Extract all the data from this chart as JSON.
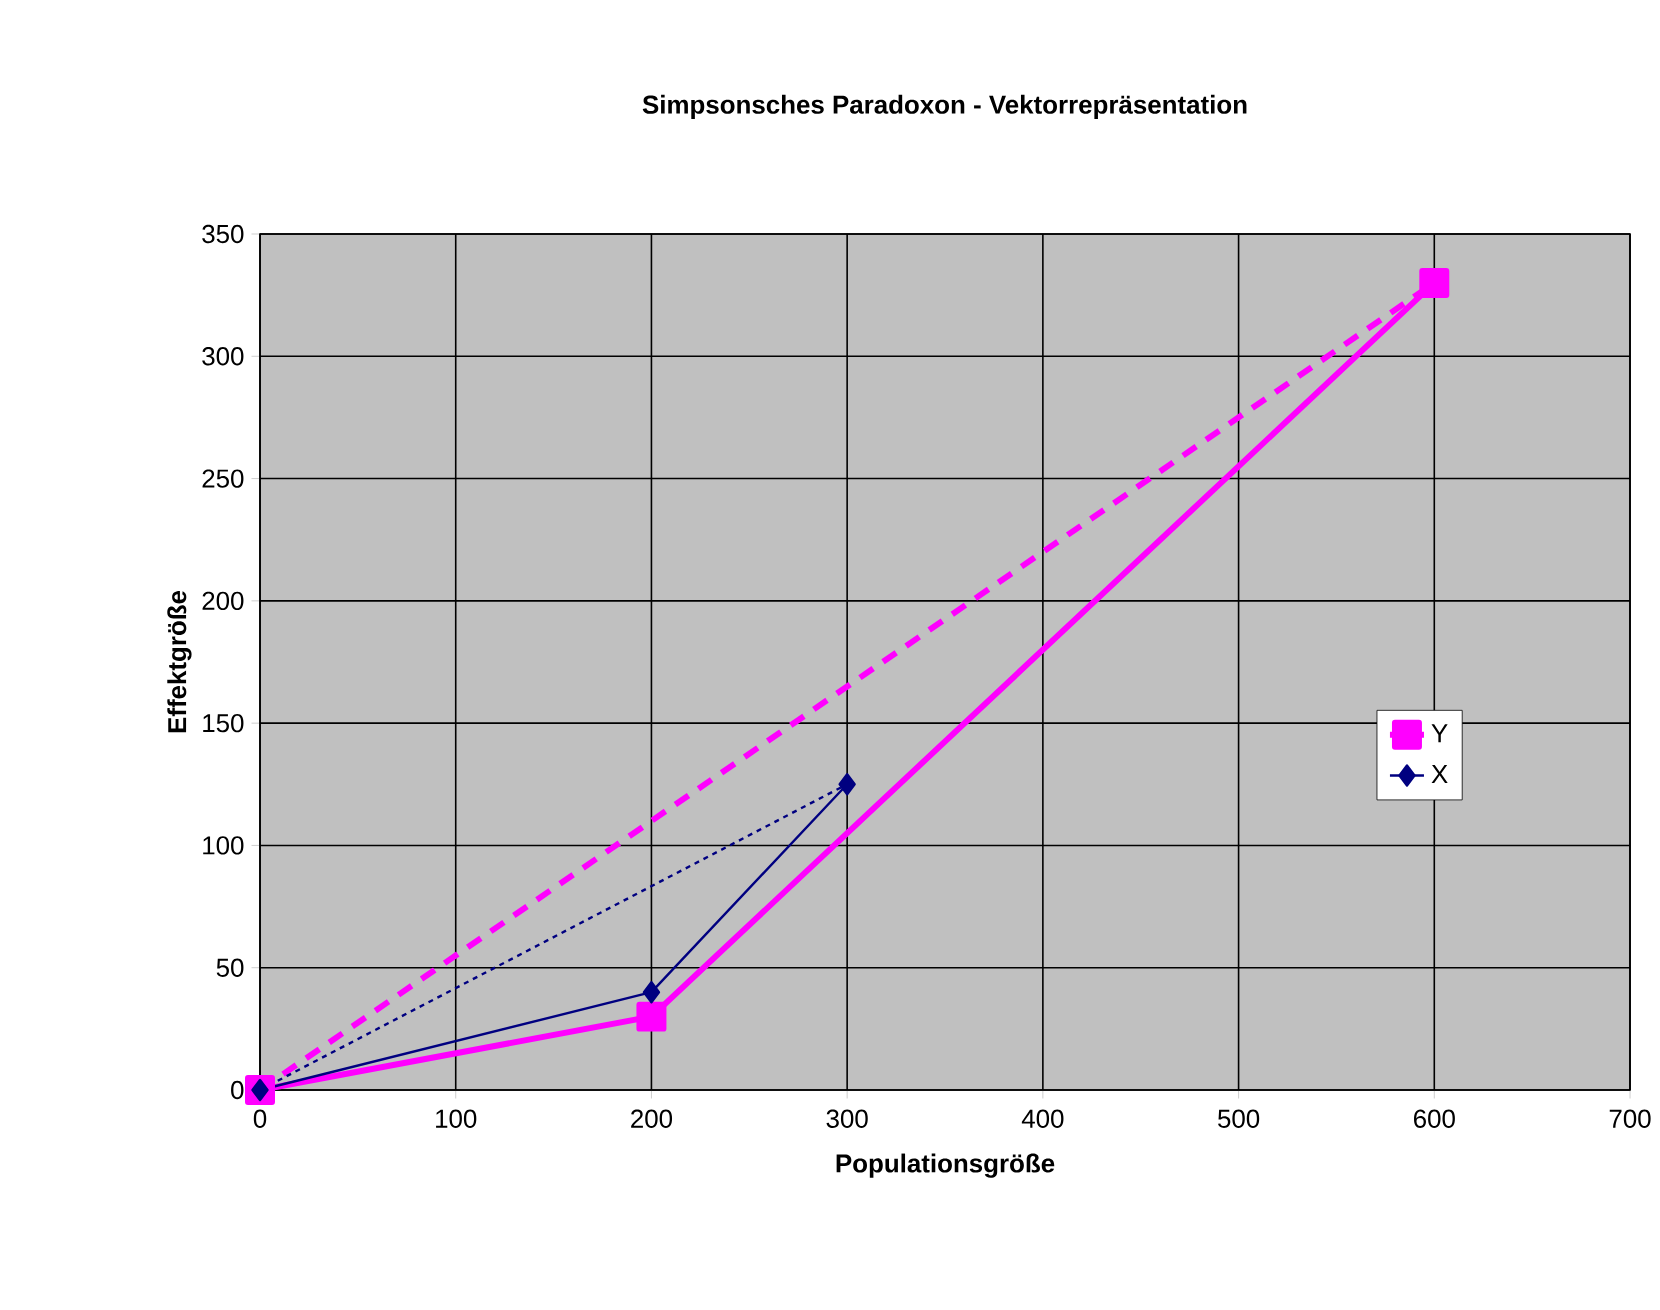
{
  "chart_data": {
    "type": "line",
    "title": "Simpsonsches Paradoxon - Vektorrepräsentation",
    "xlabel": "Populationsgröße",
    "ylabel": "Effektgröße",
    "xlim": [
      0,
      700
    ],
    "ylim": [
      0,
      350
    ],
    "xticks": [
      0,
      100,
      200,
      300,
      400,
      500,
      600,
      700
    ],
    "yticks": [
      0,
      50,
      100,
      150,
      200,
      250,
      300,
      350
    ],
    "grid": true,
    "legend": "right",
    "series": [
      {
        "name": "Y",
        "color": "#ff00ff",
        "x": [
          0,
          200,
          600
        ],
        "values": [
          0,
          30,
          330
        ],
        "line_style": "solid",
        "marker": "square"
      },
      {
        "name": "X",
        "color": "#000080",
        "x": [
          0,
          200,
          300
        ],
        "values": [
          0,
          40,
          125
        ],
        "line_style": "solid",
        "marker": "diamond"
      },
      {
        "color": "#ff00ff",
        "x": [
          0,
          600
        ],
        "values": [
          0,
          330
        ],
        "line_style": "dashed",
        "marker": "none"
      },
      {
        "color": "#000080",
        "x": [
          0,
          300
        ],
        "values": [
          0,
          125
        ],
        "line_style": "dotted",
        "marker": "none"
      }
    ]
  }
}
